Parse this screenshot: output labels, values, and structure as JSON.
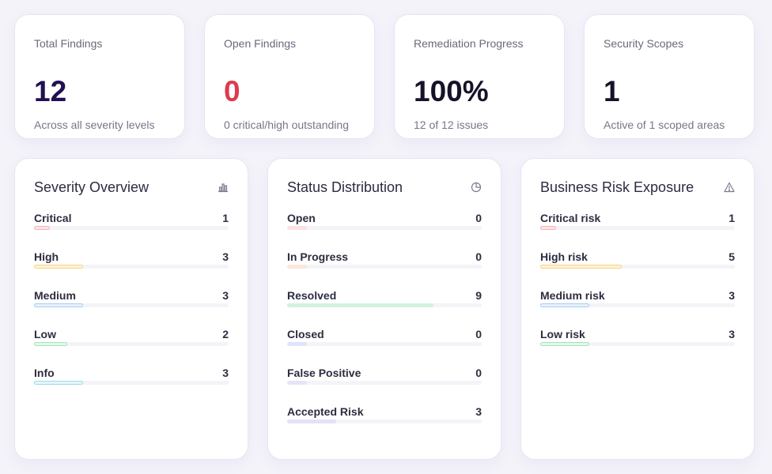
{
  "stats": [
    {
      "label": "Total Findings",
      "value": "12",
      "sub": "Across all severity levels"
    },
    {
      "label": "Open Findings",
      "value": "0",
      "sub": "0 critical/high outstanding"
    },
    {
      "label": "Remediation Progress",
      "value": "100%",
      "sub": "12 of 12 issues"
    },
    {
      "label": "Security Scopes",
      "value": "1",
      "sub": "Active of 1 scoped areas"
    }
  ],
  "panels": [
    {
      "title": "Severity Overview",
      "icon": "bar-chart-icon",
      "rows": [
        {
          "label": "Critical",
          "value": "1",
          "fraction": 0.08,
          "fill": "#fde4e4",
          "stroke": "#f5b3b3"
        },
        {
          "label": "High",
          "value": "3",
          "fraction": 0.25,
          "fill": "#fff3d6",
          "stroke": "#f6d38a"
        },
        {
          "label": "Medium",
          "value": "3",
          "fraction": 0.25,
          "fill": "#e6f2fd",
          "stroke": "#a9cdf1"
        },
        {
          "label": "Low",
          "value": "2",
          "fraction": 0.17,
          "fill": "#e3f8ea",
          "stroke": "#a6e3bd"
        },
        {
          "label": "Info",
          "value": "3",
          "fraction": 0.25,
          "fill": "#e3f7fb",
          "stroke": "#9edbe9"
        }
      ]
    },
    {
      "title": "Status Distribution",
      "icon": "pie-chart-icon",
      "rows": [
        {
          "label": "Open",
          "value": "0",
          "fraction": 0.1,
          "fill": "#fde1e1",
          "stroke": "#fde1e1"
        },
        {
          "label": "In Progress",
          "value": "0",
          "fraction": 0.1,
          "fill": "#fde6d9",
          "stroke": "#fde6d9"
        },
        {
          "label": "Resolved",
          "value": "9",
          "fraction": 0.75,
          "fill": "#d3f1df",
          "stroke": "#d3f1df"
        },
        {
          "label": "Closed",
          "value": "0",
          "fraction": 0.1,
          "fill": "#dfe4fb",
          "stroke": "#dfe4fb"
        },
        {
          "label": "False Positive",
          "value": "0",
          "fraction": 0.1,
          "fill": "#e6e4f8",
          "stroke": "#e6e4f8"
        },
        {
          "label": "Accepted Risk",
          "value": "3",
          "fraction": 0.25,
          "fill": "#e4e1f7",
          "stroke": "#e4e1f7"
        }
      ]
    },
    {
      "title": "Business Risk Exposure",
      "icon": "warning-icon",
      "rows": [
        {
          "label": "Critical risk",
          "value": "1",
          "fraction": 0.08,
          "fill": "#fde4e4",
          "stroke": "#f5b3b3"
        },
        {
          "label": "High risk",
          "value": "5",
          "fraction": 0.42,
          "fill": "#fff3d6",
          "stroke": "#f6d38a"
        },
        {
          "label": "Medium risk",
          "value": "3",
          "fraction": 0.25,
          "fill": "#e6f2fd",
          "stroke": "#a9cdf1"
        },
        {
          "label": "Low risk",
          "value": "3",
          "fraction": 0.25,
          "fill": "#e3f8ea",
          "stroke": "#a6e3bd"
        }
      ]
    }
  ]
}
